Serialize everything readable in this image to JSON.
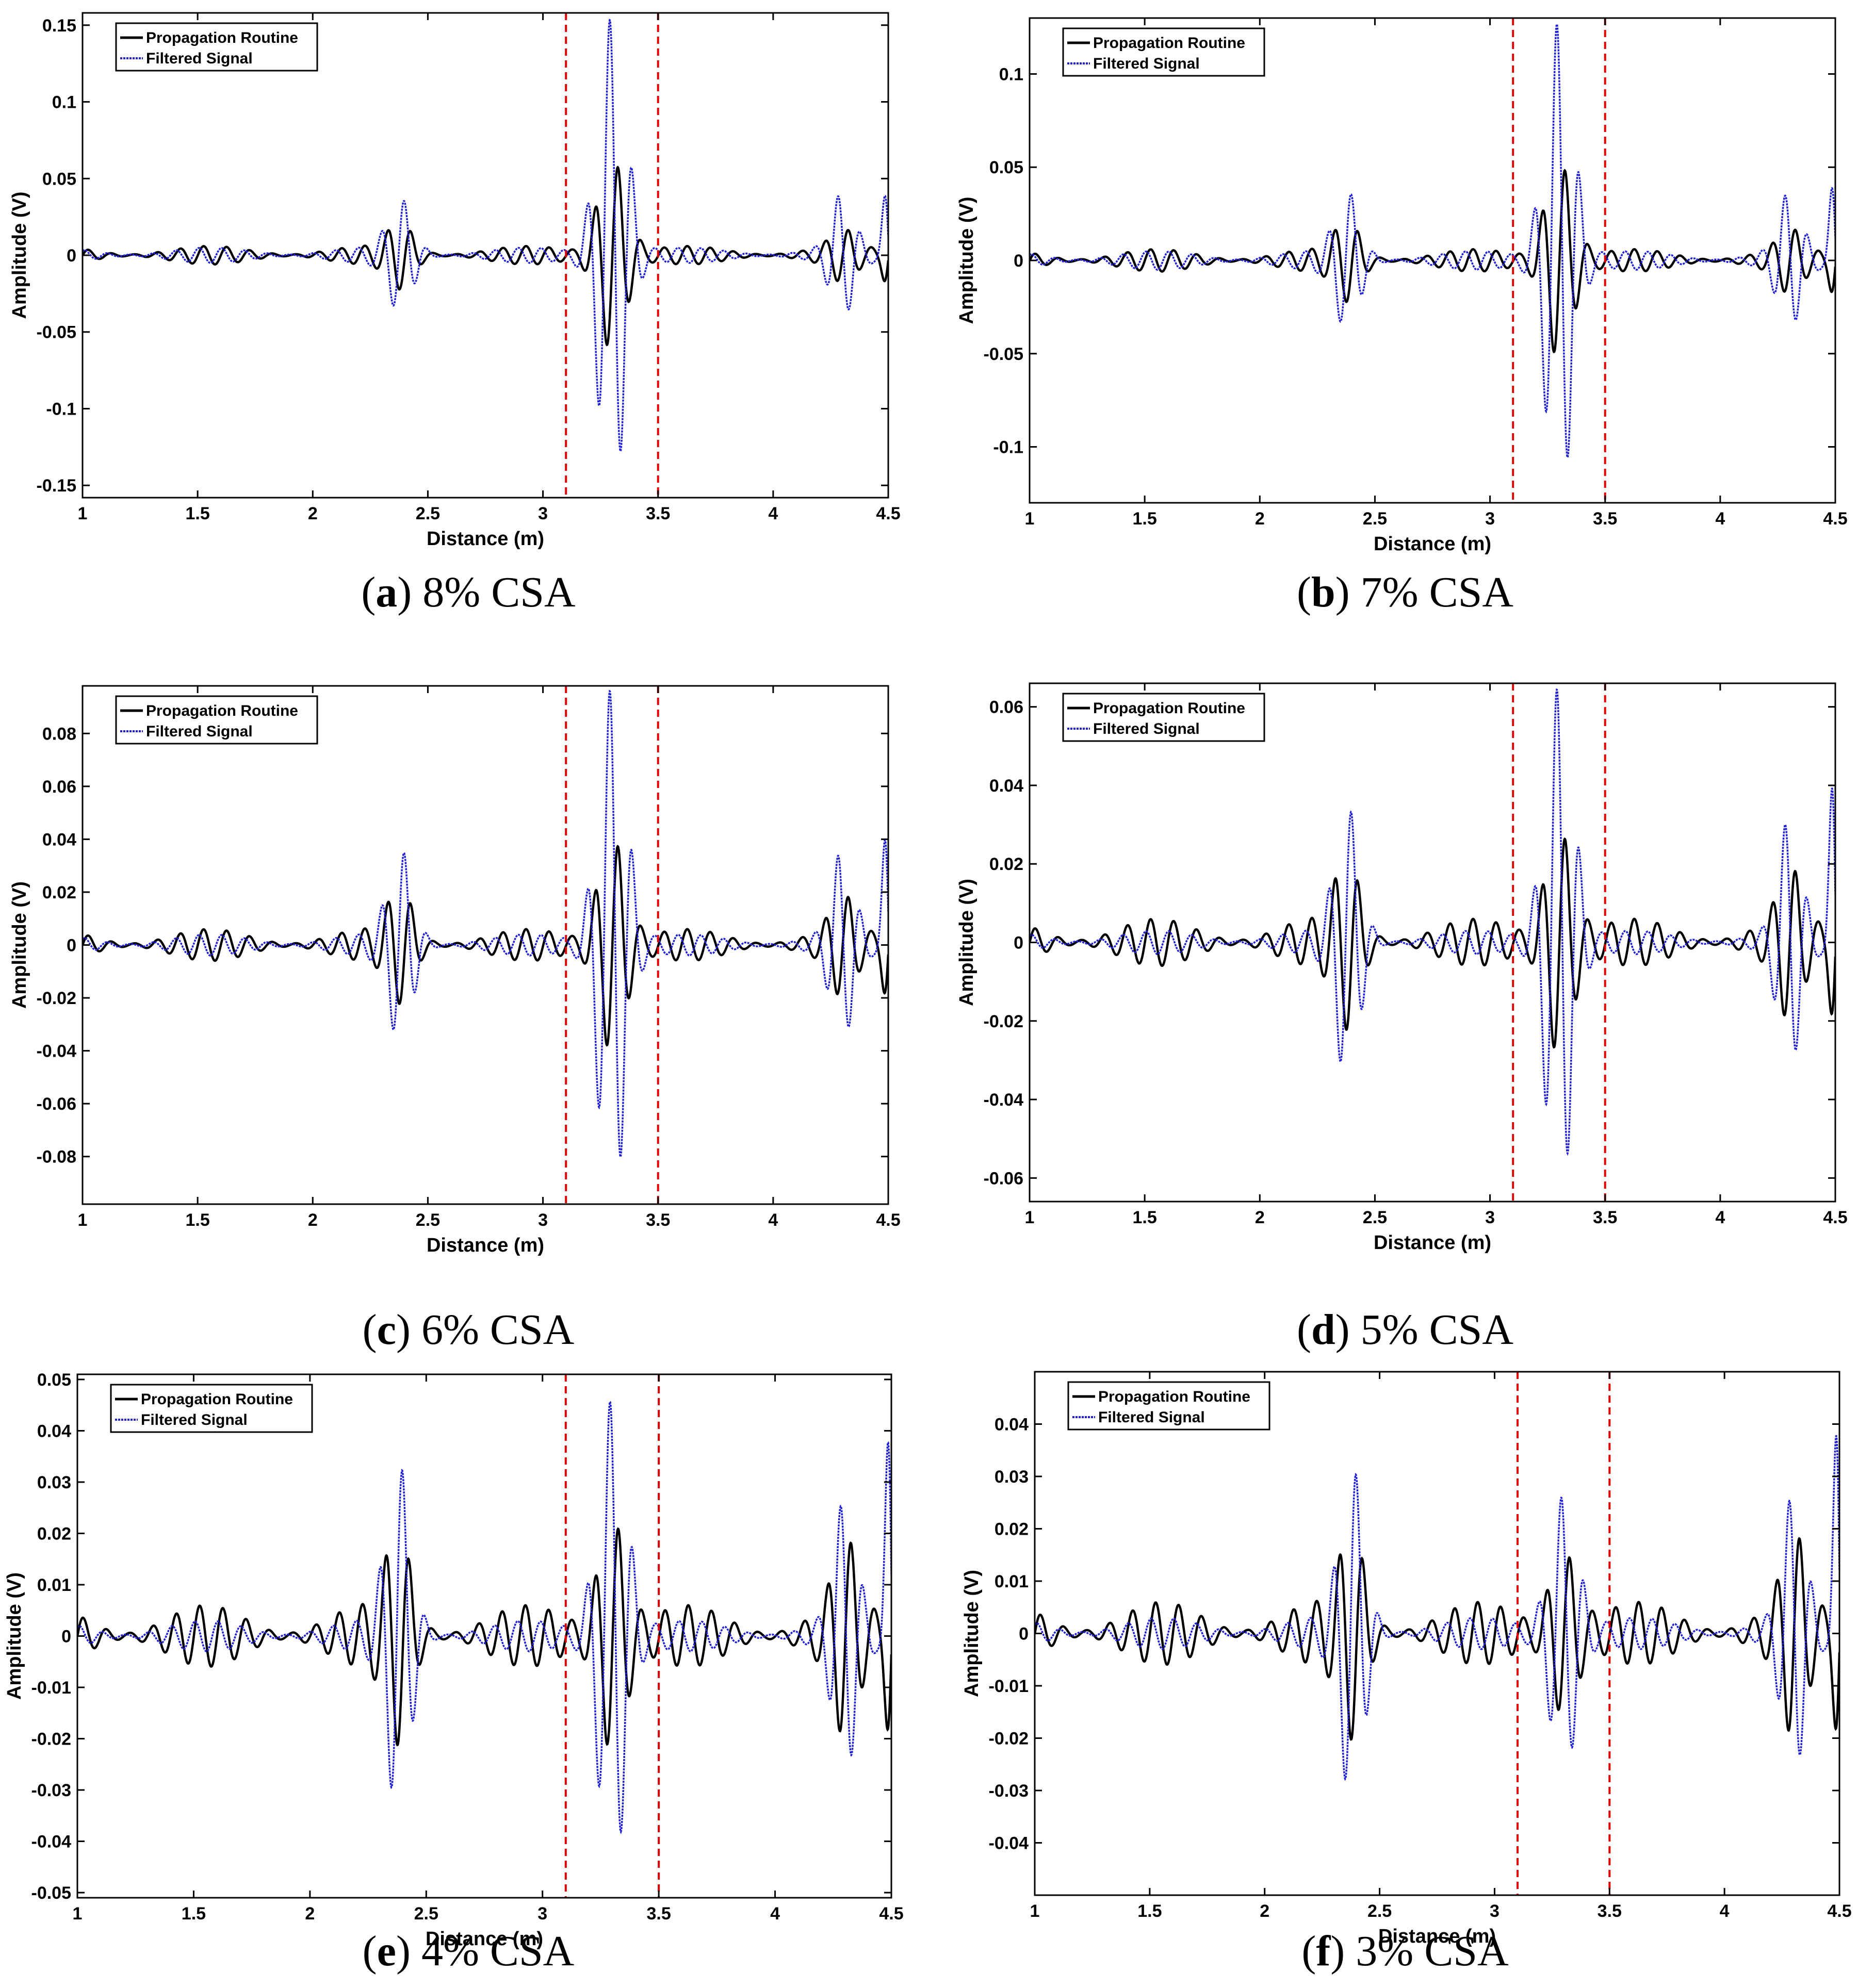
{
  "chart_data": [
    {
      "panel": "a",
      "caption_letter": "a",
      "caption_text": "8% CSA",
      "type": "line",
      "xlabel": "Distance (m)",
      "ylabel": "Amplitude (V)",
      "xlim": [
        1,
        4.5
      ],
      "ylim": [
        -0.158,
        0.158
      ],
      "xticks": [
        "1",
        "1.5",
        "2",
        "2.5",
        "3",
        "3.5",
        "4",
        "4.5"
      ],
      "yticks": [
        "-0.15",
        "-0.1",
        "-0.05",
        "0",
        "0.05",
        "0.1",
        "0.15"
      ],
      "ytick_values": [
        -0.15,
        -0.1,
        -0.05,
        0,
        0.05,
        0.1,
        0.15
      ],
      "legend": [
        "Propagation Routine",
        "Filtered Signal"
      ],
      "markers": [
        3.1,
        3.5
      ],
      "packets": [
        {
          "center": 2.38,
          "width": 0.075,
          "routine": 0.018,
          "filtered": 0.034
        },
        {
          "center": 3.3,
          "width": 0.085,
          "routine": 0.062,
          "filtered": 0.155
        },
        {
          "center": 4.3,
          "width": 0.07,
          "routine": 0.012,
          "filtered": 0.036
        }
      ],
      "edge": {
        "routine": 0.02,
        "filtered": 0.05
      },
      "noise": {
        "routine": 0.006,
        "filtered": 0.005
      }
    },
    {
      "panel": "b",
      "caption_letter": "b",
      "caption_text": "7% CSA",
      "type": "line",
      "xlabel": "Distance (m)",
      "ylabel": "Amplitude (V)",
      "xlim": [
        1,
        4.5
      ],
      "ylim": [
        -0.13,
        0.13
      ],
      "xticks": [
        "1",
        "1.5",
        "2",
        "2.5",
        "3",
        "3.5",
        "4",
        "4.5"
      ],
      "yticks": [
        "-0.1",
        "-0.05",
        "0",
        "0.05",
        "0.1"
      ],
      "ytick_values": [
        -0.1,
        -0.05,
        0,
        0.05,
        0.1
      ],
      "legend": [
        "Propagation Routine",
        "Filtered Signal"
      ],
      "markers": [
        3.1,
        3.5
      ],
      "packets": [
        {
          "center": 2.38,
          "width": 0.075,
          "routine": 0.018,
          "filtered": 0.034
        },
        {
          "center": 3.3,
          "width": 0.085,
          "routine": 0.052,
          "filtered": 0.128
        },
        {
          "center": 4.3,
          "width": 0.07,
          "routine": 0.012,
          "filtered": 0.032
        }
      ],
      "edge": {
        "routine": 0.02,
        "filtered": 0.05
      },
      "noise": {
        "routine": 0.006,
        "filtered": 0.005
      }
    },
    {
      "panel": "c",
      "caption_letter": "c",
      "caption_text": "6% CSA",
      "type": "line",
      "xlabel": "Distance (m)",
      "ylabel": "Amplitude (V)",
      "xlim": [
        1,
        4.5
      ],
      "ylim": [
        -0.098,
        0.098
      ],
      "xticks": [
        "1",
        "1.5",
        "2",
        "2.5",
        "3",
        "3.5",
        "4",
        "4.5"
      ],
      "yticks": [
        "-0.08",
        "-0.06",
        "-0.04",
        "-0.02",
        "0",
        "0.02",
        "0.04",
        "0.06",
        "0.08"
      ],
      "ytick_values": [
        -0.08,
        -0.06,
        -0.04,
        -0.02,
        0,
        0.02,
        0.04,
        0.06,
        0.08
      ],
      "legend": [
        "Propagation Routine",
        "Filtered Signal"
      ],
      "markers": [
        3.1,
        3.5
      ],
      "packets": [
        {
          "center": 2.38,
          "width": 0.075,
          "routine": 0.018,
          "filtered": 0.034
        },
        {
          "center": 3.3,
          "width": 0.085,
          "routine": 0.04,
          "filtered": 0.097
        },
        {
          "center": 4.3,
          "width": 0.07,
          "routine": 0.014,
          "filtered": 0.032
        }
      ],
      "edge": {
        "routine": 0.022,
        "filtered": 0.052
      },
      "noise": {
        "routine": 0.006,
        "filtered": 0.004
      }
    },
    {
      "panel": "d",
      "caption_letter": "d",
      "caption_text": "5% CSA",
      "type": "line",
      "xlabel": "Distance (m)",
      "ylabel": "Amplitude (V)",
      "xlim": [
        1,
        4.5
      ],
      "ylim": [
        -0.066,
        0.066
      ],
      "xticks": [
        "1",
        "1.5",
        "2",
        "2.5",
        "3",
        "3.5",
        "4",
        "4.5"
      ],
      "yticks": [
        "-0.06",
        "-0.04",
        "-0.02",
        "0",
        "0.02",
        "0.04",
        "0.06"
      ],
      "ytick_values": [
        -0.06,
        -0.04,
        -0.02,
        0,
        0.02,
        0.04,
        0.06
      ],
      "legend": [
        "Propagation Routine",
        "Filtered Signal"
      ],
      "markers": [
        3.1,
        3.5
      ],
      "packets": [
        {
          "center": 2.38,
          "width": 0.075,
          "routine": 0.018,
          "filtered": 0.033
        },
        {
          "center": 3.3,
          "width": 0.085,
          "routine": 0.028,
          "filtered": 0.065
        },
        {
          "center": 4.3,
          "width": 0.07,
          "routine": 0.014,
          "filtered": 0.029
        }
      ],
      "edge": {
        "routine": 0.022,
        "filtered": 0.052
      },
      "noise": {
        "routine": 0.006,
        "filtered": 0.003
      }
    },
    {
      "panel": "e",
      "caption_letter": "e",
      "caption_text": "4% CSA",
      "type": "line",
      "xlabel": "Distance (m)",
      "ylabel": "Amplitude (V)",
      "xlim": [
        1,
        4.5
      ],
      "ylim": [
        -0.051,
        0.051
      ],
      "xticks": [
        "1",
        "1.5",
        "2",
        "2.5",
        "3",
        "3.5",
        "4",
        "4.5"
      ],
      "yticks": [
        "-0.05",
        "-0.04",
        "-0.03",
        "-0.02",
        "-0.01",
        "0",
        "0.01",
        "0.02",
        "0.03",
        "0.04",
        "0.05"
      ],
      "ytick_values": [
        -0.05,
        -0.04,
        -0.03,
        -0.02,
        -0.01,
        0,
        0.01,
        0.02,
        0.03,
        0.04,
        0.05
      ],
      "legend": [
        "Propagation Routine",
        "Filtered Signal"
      ],
      "markers": [
        3.1,
        3.5
      ],
      "packets": [
        {
          "center": 2.38,
          "width": 0.075,
          "routine": 0.017,
          "filtered": 0.032
        },
        {
          "center": 3.3,
          "width": 0.085,
          "routine": 0.022,
          "filtered": 0.046
        },
        {
          "center": 4.3,
          "width": 0.07,
          "routine": 0.014,
          "filtered": 0.024
        }
      ],
      "edge": {
        "routine": 0.022,
        "filtered": 0.05
      },
      "noise": {
        "routine": 0.006,
        "filtered": 0.003
      }
    },
    {
      "panel": "f",
      "caption_letter": "f",
      "caption_text": "3% CSA",
      "type": "line",
      "xlabel": "Distance (m)",
      "ylabel": "Amplitude (V)",
      "xlim": [
        1,
        4.5
      ],
      "ylim": [
        -0.05,
        0.05
      ],
      "xticks": [
        "1",
        "1.5",
        "2",
        "2.5",
        "3",
        "3.5",
        "4",
        "4.5"
      ],
      "yticks": [
        "-0.04",
        "-0.03",
        "-0.02",
        "-0.01",
        "0",
        "0.01",
        "0.02",
        "0.03",
        "0.04"
      ],
      "ytick_values": [
        -0.04,
        -0.03,
        -0.02,
        -0.01,
        0,
        0.01,
        0.02,
        0.03,
        0.04
      ],
      "legend": [
        "Propagation Routine",
        "Filtered Signal"
      ],
      "markers": [
        3.1,
        3.5
      ],
      "packets": [
        {
          "center": 2.38,
          "width": 0.075,
          "routine": 0.016,
          "filtered": 0.03
        },
        {
          "center": 3.3,
          "width": 0.085,
          "routine": 0.015,
          "filtered": 0.026
        },
        {
          "center": 4.3,
          "width": 0.07,
          "routine": 0.014,
          "filtered": 0.024
        }
      ],
      "edge": {
        "routine": 0.022,
        "filtered": 0.05
      },
      "noise": {
        "routine": 0.006,
        "filtered": 0.003
      }
    }
  ],
  "colors": {
    "routine": "#000000",
    "filtered": "#1f1fd6",
    "marker": "#e00000",
    "axes": "#000000"
  }
}
